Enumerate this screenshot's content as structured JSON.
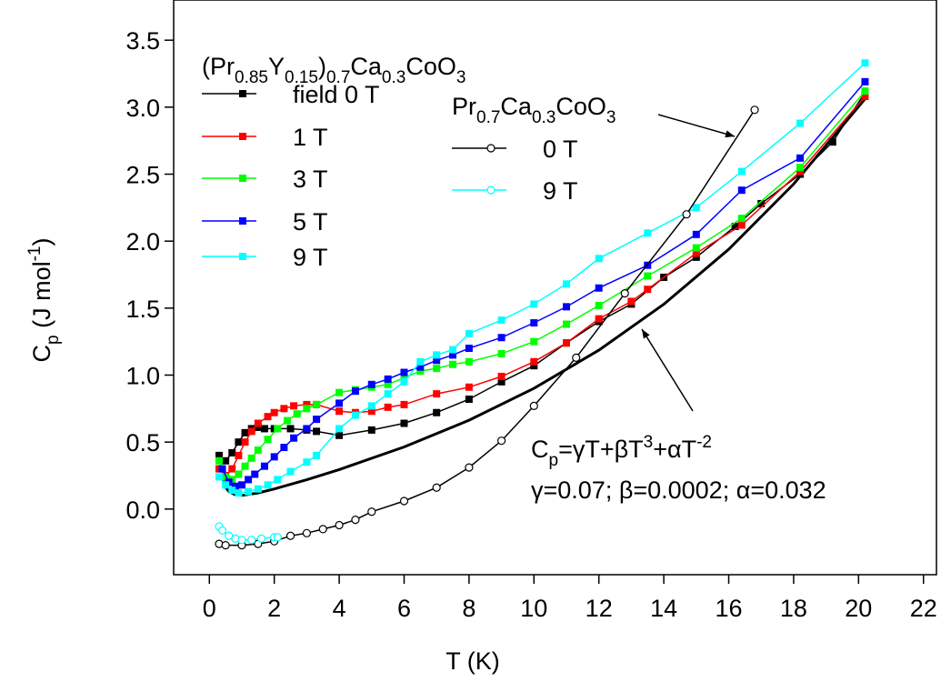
{
  "chart_data": {
    "type": "line",
    "xlabel": "T (K)",
    "ylabel_parts": [
      {
        "text": "C"
      },
      {
        "text": "p",
        "shift": "sub"
      },
      {
        "text": " (J mol"
      },
      {
        "text": "-1",
        "shift": "sup"
      },
      {
        "text": ")"
      }
    ],
    "xlim": [
      -1.1,
      22.4
    ],
    "ylim": [
      -0.49,
      3.8
    ],
    "xticks": [
      0,
      2,
      4,
      6,
      8,
      10,
      12,
      14,
      16,
      18,
      20,
      22
    ],
    "yticks": [
      {
        "value": 0,
        "label": "0.0"
      },
      0.5,
      {
        "value": 1,
        "label": "1.0"
      },
      1.5,
      {
        "value": 2,
        "label": "2.0"
      },
      2.5,
      {
        "value": 3,
        "label": "3.0"
      },
      3.5
    ],
    "legend_title_parts": [
      {
        "text": "(Pr"
      },
      {
        "text": "0.85",
        "shift": "sub"
      },
      {
        "text": "Y"
      },
      {
        "text": "0.15",
        "shift": "sub"
      },
      {
        "text": ")"
      },
      {
        "text": "0.7",
        "shift": "sub"
      },
      {
        "text": "Ca"
      },
      {
        "text": "0.3",
        "shift": "sub"
      },
      {
        "text": "CoO"
      },
      {
        "text": "3",
        "shift": "sub"
      }
    ],
    "legend2_title_parts": [
      {
        "text": "Pr"
      },
      {
        "text": "0.7",
        "shift": "sub"
      },
      {
        "text": "Ca"
      },
      {
        "text": "0.3",
        "shift": "sub"
      },
      {
        "text": "CoO"
      },
      {
        "text": "3",
        "shift": "sub"
      }
    ],
    "series": [
      {
        "name": "field 0 T",
        "color": "#000000",
        "marker": "square",
        "x": [
          0.3,
          0.5,
          0.7,
          0.9,
          1.1,
          1.3,
          1.5,
          1.7,
          2,
          2.5,
          3,
          3.3,
          4,
          5,
          6,
          7,
          8,
          9,
          10,
          11,
          12,
          13,
          14,
          15,
          16.2,
          17,
          18.2,
          19.2,
          20.2
        ],
        "values": [
          0.4,
          0.36,
          0.42,
          0.5,
          0.57,
          0.6,
          0.61,
          0.6,
          0.6,
          0.6,
          0.59,
          0.58,
          0.55,
          0.59,
          0.64,
          0.72,
          0.82,
          0.95,
          1.07,
          1.24,
          1.4,
          1.53,
          1.73,
          1.88,
          2.11,
          2.28,
          2.5,
          2.74,
          3.11
        ]
      },
      {
        "name": "1 T",
        "color": "#ff0000",
        "marker": "square",
        "x": [
          0.3,
          0.5,
          0.7,
          0.9,
          1.1,
          1.3,
          1.5,
          1.8,
          2,
          2.3,
          2.6,
          3,
          3.3,
          4,
          4.5,
          5,
          5.5,
          6,
          7,
          8,
          9,
          10,
          11,
          12,
          13,
          13.5,
          15,
          16.4,
          18.2,
          20.2
        ],
        "values": [
          0.3,
          0.25,
          0.3,
          0.4,
          0.5,
          0.58,
          0.64,
          0.69,
          0.72,
          0.75,
          0.77,
          0.78,
          0.78,
          0.73,
          0.72,
          0.73,
          0.76,
          0.78,
          0.86,
          0.91,
          0.99,
          1.1,
          1.24,
          1.42,
          1.55,
          1.64,
          1.91,
          2.12,
          2.52,
          3.08
        ]
      },
      {
        "name": "3 T",
        "color": "#00ff00",
        "marker": "square",
        "x": [
          0.3,
          0.5,
          0.7,
          0.9,
          1.1,
          1.3,
          1.5,
          1.8,
          2.1,
          2.4,
          2.7,
          3,
          3.3,
          4,
          4.5,
          5,
          5.5,
          6,
          6.5,
          7,
          7.5,
          8,
          9,
          10,
          11,
          12,
          13.5,
          15,
          16.4,
          18.2,
          20.2
        ],
        "values": [
          0.36,
          0.24,
          0.22,
          0.26,
          0.32,
          0.38,
          0.44,
          0.52,
          0.6,
          0.66,
          0.71,
          0.75,
          0.78,
          0.87,
          0.89,
          0.91,
          0.93,
          0.98,
          1.03,
          1.05,
          1.08,
          1.1,
          1.16,
          1.25,
          1.38,
          1.52,
          1.74,
          1.95,
          2.17,
          2.55,
          3.12
        ]
      },
      {
        "name": "5 T",
        "color": "#0000ff",
        "marker": "square",
        "x": [
          0.4,
          0.6,
          0.8,
          1,
          1.2,
          1.4,
          1.7,
          2,
          2.3,
          2.6,
          3,
          3.3,
          4,
          4.5,
          5,
          5.5,
          6,
          6.5,
          7,
          7.5,
          8,
          9,
          10,
          11,
          12,
          13.5,
          15,
          16.4,
          18.2,
          20.2
        ],
        "values": [
          0.3,
          0.2,
          0.17,
          0.18,
          0.22,
          0.26,
          0.32,
          0.39,
          0.46,
          0.53,
          0.6,
          0.67,
          0.79,
          0.88,
          0.93,
          0.97,
          1.02,
          1.06,
          1.11,
          1.15,
          1.2,
          1.28,
          1.39,
          1.51,
          1.65,
          1.82,
          2.05,
          2.38,
          2.62,
          3.19
        ]
      },
      {
        "name": "9 T",
        "color": "#00ffff",
        "marker": "square",
        "x": [
          0.3,
          0.5,
          0.7,
          0.9,
          1.2,
          1.5,
          1.8,
          2.1,
          2.5,
          3,
          3.3,
          4,
          4.5,
          5,
          5.5,
          6,
          6.5,
          7,
          7.5,
          8,
          9,
          10,
          11,
          12,
          13.5,
          15,
          16.4,
          18.2,
          20.2
        ],
        "values": [
          0.24,
          0.18,
          0.14,
          0.12,
          0.13,
          0.15,
          0.18,
          0.22,
          0.28,
          0.35,
          0.4,
          0.6,
          0.7,
          0.77,
          0.86,
          0.95,
          1.1,
          1.15,
          1.19,
          1.31,
          1.41,
          1.53,
          1.68,
          1.87,
          2.06,
          2.25,
          2.52,
          2.88,
          3.33
        ]
      },
      {
        "name": "0 T",
        "color": "#000000",
        "marker": "circle",
        "x": [
          0.3,
          0.5,
          1,
          1.5,
          2,
          2.5,
          3,
          3.5,
          4,
          4.5,
          5,
          6,
          7,
          8,
          9,
          10,
          11.3,
          12.8,
          14.7,
          16.8
        ],
        "values": [
          -0.26,
          -0.27,
          -0.27,
          -0.26,
          -0.24,
          -0.2,
          -0.18,
          -0.15,
          -0.12,
          -0.08,
          -0.02,
          0.06,
          0.16,
          0.31,
          0.51,
          0.77,
          1.13,
          1.61,
          2.2,
          2.98
        ]
      },
      {
        "name": "9 T",
        "color": "#00ffff",
        "marker": "circle",
        "x": [
          0.3,
          0.4,
          0.6,
          0.8,
          1,
          1.3,
          1.6,
          2,
          2.1
        ],
        "values": [
          -0.13,
          -0.16,
          -0.2,
          -0.22,
          -0.23,
          -0.23,
          -0.22,
          -0.21,
          -0.21
        ]
      }
    ],
    "fit": {
      "color": "#000000",
      "x": [
        0.4,
        0.5,
        0.6,
        0.8,
        1,
        1.5,
        2,
        3,
        4,
        6,
        8,
        10,
        12,
        14,
        16,
        18,
        20.2
      ],
      "values": [
        0.228,
        0.163,
        0.131,
        0.106,
        0.102,
        0.12,
        0.15,
        0.219,
        0.295,
        0.464,
        0.663,
        0.901,
        1.186,
        1.529,
        1.939,
        2.426,
        3.062
      ]
    },
    "fit_formula_parts": [
      {
        "text": "C"
      },
      {
        "text": "p",
        "shift": "sub"
      },
      {
        "text": "=γT+βT"
      },
      {
        "text": "3",
        "shift": "sup"
      },
      {
        "text": "+αT"
      },
      {
        "text": "-2",
        "shift": "sup"
      }
    ],
    "fit_params": "γ=0.07; β=0.0002; α=0.032"
  }
}
